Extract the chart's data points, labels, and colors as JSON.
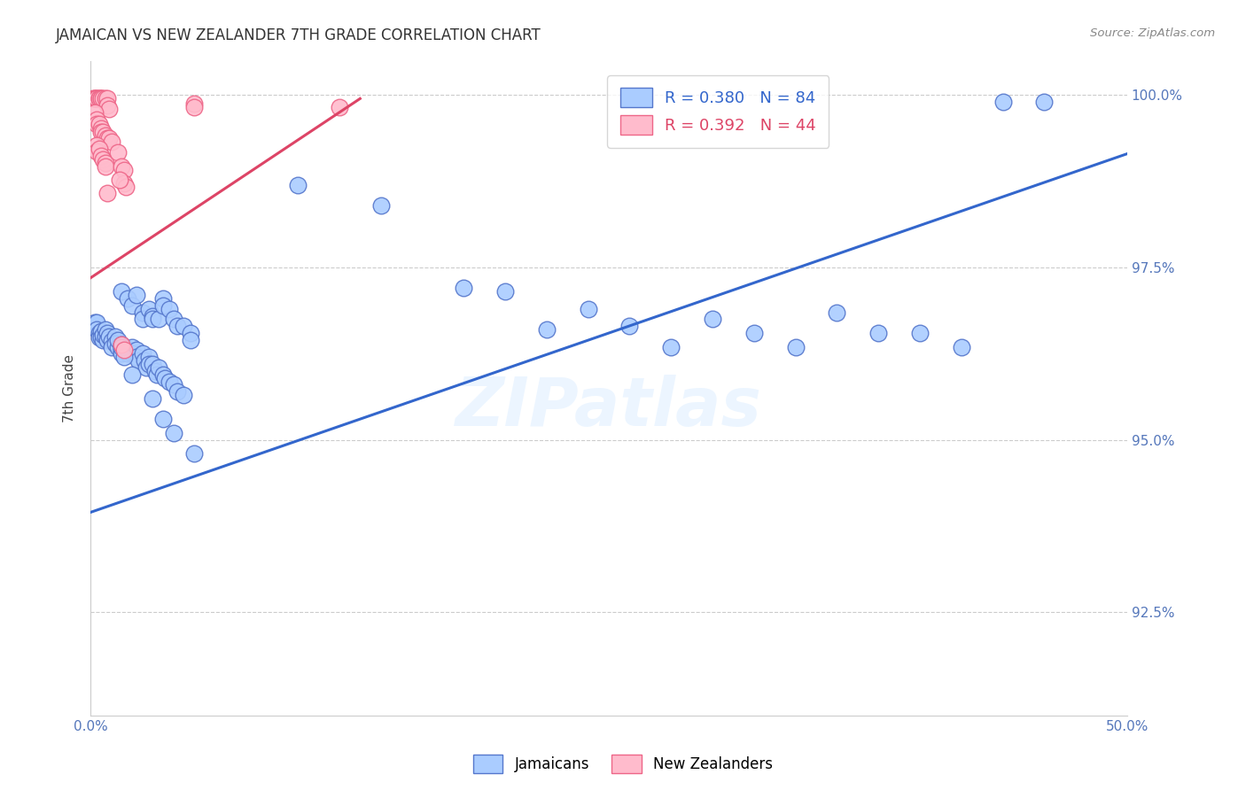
{
  "title": "JAMAICAN VS NEW ZEALANDER 7TH GRADE CORRELATION CHART",
  "source": "Source: ZipAtlas.com",
  "ylabel": "7th Grade",
  "xlim": [
    0.0,
    0.5
  ],
  "ylim": [
    0.91,
    1.005
  ],
  "xticks": [
    0.0,
    0.1,
    0.2,
    0.3,
    0.4,
    0.5
  ],
  "xticklabels": [
    "0.0%",
    "",
    "",
    "",
    "",
    "50.0%"
  ],
  "yticks": [
    0.925,
    0.95,
    0.975,
    1.0
  ],
  "yticklabels": [
    "92.5%",
    "95.0%",
    "97.5%",
    "100.0%"
  ],
  "background_color": "#ffffff",
  "grid_color": "#cccccc",
  "tick_color": "#5577bb",
  "title_color": "#333333",
  "source_color": "#888888",
  "ylabel_color": "#444444",
  "blue_face": "#aaccff",
  "blue_edge": "#5577cc",
  "pink_face": "#ffbbcc",
  "pink_edge": "#ee6688",
  "blue_line_color": "#3366cc",
  "pink_line_color": "#dd4466",
  "watermark": "ZIPatlas",
  "watermark_color": "#ddeeff",
  "blue_scatter": [
    [
      0.002,
      0.967
    ],
    [
      0.003,
      0.967
    ],
    [
      0.003,
      0.966
    ],
    [
      0.004,
      0.9655
    ],
    [
      0.004,
      0.9648
    ],
    [
      0.005,
      0.9658
    ],
    [
      0.005,
      0.9648
    ],
    [
      0.006,
      0.9645
    ],
    [
      0.006,
      0.9652
    ],
    [
      0.007,
      0.966
    ],
    [
      0.007,
      0.965
    ],
    [
      0.008,
      0.9655
    ],
    [
      0.008,
      0.9645
    ],
    [
      0.009,
      0.965
    ],
    [
      0.01,
      0.9643
    ],
    [
      0.01,
      0.9635
    ],
    [
      0.012,
      0.965
    ],
    [
      0.012,
      0.964
    ],
    [
      0.013,
      0.9635
    ],
    [
      0.013,
      0.9645
    ],
    [
      0.015,
      0.9638
    ],
    [
      0.015,
      0.963
    ],
    [
      0.015,
      0.9625
    ],
    [
      0.016,
      0.9635
    ],
    [
      0.017,
      0.9632
    ],
    [
      0.018,
      0.9625
    ],
    [
      0.019,
      0.963
    ],
    [
      0.02,
      0.9635
    ],
    [
      0.02,
      0.9625
    ],
    [
      0.022,
      0.963
    ],
    [
      0.022,
      0.962
    ],
    [
      0.023,
      0.9615
    ],
    [
      0.025,
      0.9625
    ],
    [
      0.026,
      0.9615
    ],
    [
      0.027,
      0.9605
    ],
    [
      0.028,
      0.962
    ],
    [
      0.028,
      0.961
    ],
    [
      0.03,
      0.961
    ],
    [
      0.031,
      0.96
    ],
    [
      0.032,
      0.9595
    ],
    [
      0.033,
      0.9605
    ],
    [
      0.035,
      0.9595
    ],
    [
      0.036,
      0.959
    ],
    [
      0.038,
      0.9585
    ],
    [
      0.04,
      0.958
    ],
    [
      0.042,
      0.957
    ],
    [
      0.045,
      0.9565
    ],
    [
      0.015,
      0.9715
    ],
    [
      0.018,
      0.9705
    ],
    [
      0.02,
      0.9695
    ],
    [
      0.022,
      0.971
    ],
    [
      0.025,
      0.9685
    ],
    [
      0.025,
      0.9675
    ],
    [
      0.028,
      0.969
    ],
    [
      0.03,
      0.968
    ],
    [
      0.03,
      0.9675
    ],
    [
      0.033,
      0.9675
    ],
    [
      0.035,
      0.9705
    ],
    [
      0.035,
      0.9695
    ],
    [
      0.038,
      0.969
    ],
    [
      0.04,
      0.9675
    ],
    [
      0.042,
      0.9665
    ],
    [
      0.045,
      0.9665
    ],
    [
      0.048,
      0.9655
    ],
    [
      0.048,
      0.9645
    ],
    [
      0.1,
      0.987
    ],
    [
      0.14,
      0.984
    ],
    [
      0.18,
      0.972
    ],
    [
      0.2,
      0.9715
    ],
    [
      0.22,
      0.966
    ],
    [
      0.24,
      0.969
    ],
    [
      0.26,
      0.9665
    ],
    [
      0.28,
      0.9635
    ],
    [
      0.3,
      0.9675
    ],
    [
      0.32,
      0.9655
    ],
    [
      0.34,
      0.9635
    ],
    [
      0.36,
      0.9685
    ],
    [
      0.38,
      0.9655
    ],
    [
      0.4,
      0.9655
    ],
    [
      0.42,
      0.9635
    ],
    [
      0.44,
      0.999
    ],
    [
      0.46,
      0.999
    ],
    [
      0.015,
      0.9635
    ],
    [
      0.016,
      0.962
    ],
    [
      0.02,
      0.9595
    ],
    [
      0.03,
      0.956
    ],
    [
      0.035,
      0.953
    ],
    [
      0.04,
      0.951
    ],
    [
      0.05,
      0.948
    ]
  ],
  "pink_scatter": [
    [
      0.001,
      0.9995
    ],
    [
      0.002,
      0.9995
    ],
    [
      0.002,
      0.9995
    ],
    [
      0.003,
      0.9995
    ],
    [
      0.003,
      0.9995
    ],
    [
      0.004,
      0.9995
    ],
    [
      0.004,
      0.9995
    ],
    [
      0.005,
      0.9995
    ],
    [
      0.005,
      0.9995
    ],
    [
      0.006,
      0.9995
    ],
    [
      0.007,
      0.9995
    ],
    [
      0.008,
      0.9995
    ],
    [
      0.008,
      0.9985
    ],
    [
      0.009,
      0.998
    ],
    [
      0.002,
      0.9975
    ],
    [
      0.003,
      0.9965
    ],
    [
      0.003,
      0.9958
    ],
    [
      0.004,
      0.9958
    ],
    [
      0.005,
      0.9952
    ],
    [
      0.005,
      0.9947
    ],
    [
      0.006,
      0.9947
    ],
    [
      0.007,
      0.9942
    ],
    [
      0.008,
      0.9937
    ],
    [
      0.009,
      0.9937
    ],
    [
      0.01,
      0.9932
    ],
    [
      0.003,
      0.9927
    ],
    [
      0.003,
      0.9918
    ],
    [
      0.004,
      0.9922
    ],
    [
      0.005,
      0.9912
    ],
    [
      0.006,
      0.9907
    ],
    [
      0.007,
      0.9902
    ],
    [
      0.007,
      0.9897
    ],
    [
      0.013,
      0.9917
    ],
    [
      0.015,
      0.9897
    ],
    [
      0.016,
      0.9892
    ],
    [
      0.016,
      0.9872
    ],
    [
      0.017,
      0.9867
    ],
    [
      0.014,
      0.9877
    ],
    [
      0.05,
      0.9988
    ],
    [
      0.05,
      0.9983
    ],
    [
      0.12,
      0.9983
    ],
    [
      0.015,
      0.9638
    ],
    [
      0.016,
      0.963
    ],
    [
      0.008,
      0.9858
    ]
  ],
  "blue_line": {
    "x0": 0.0,
    "y0": 0.9395,
    "x1": 0.5,
    "y1": 0.9915
  },
  "pink_line": {
    "x0": 0.0,
    "y0": 0.9735,
    "x1": 0.13,
    "y1": 0.9995
  }
}
